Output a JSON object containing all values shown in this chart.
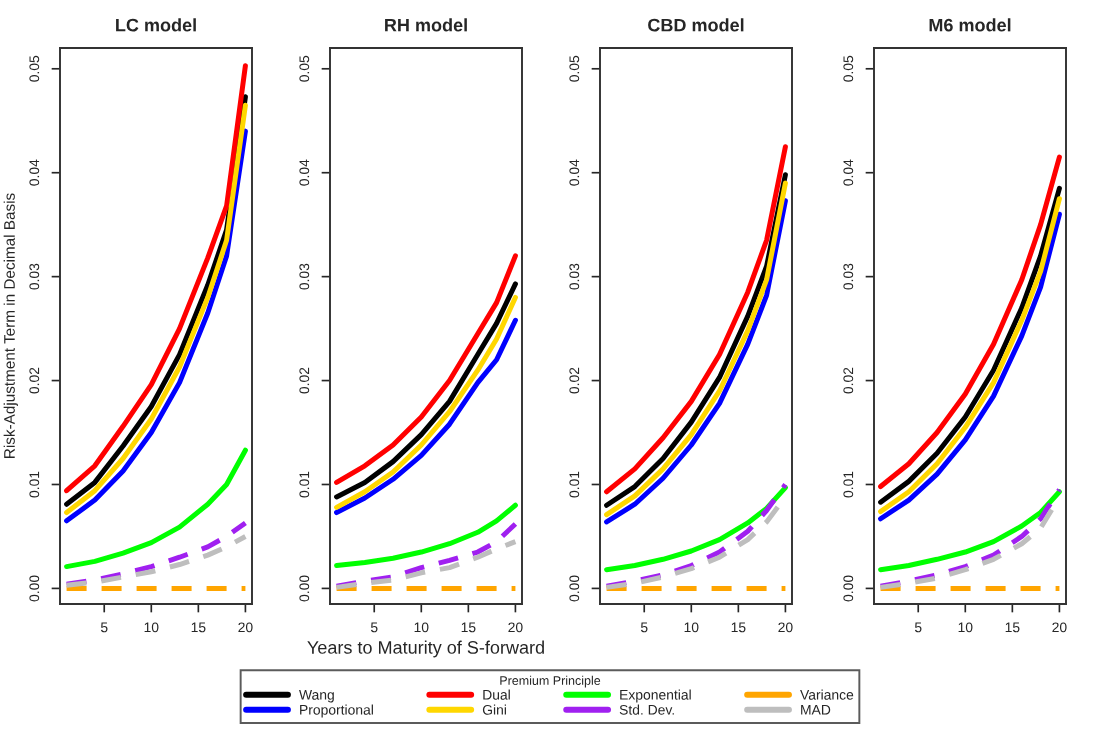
{
  "chart_data": [
    {
      "type": "line",
      "title": "LC model",
      "ylabel": "Risk-Adjustment Term in Decimal Basis",
      "legend": "bottom",
      "legend_title": "Premium Principle",
      "grid": false,
      "x": [
        1,
        4,
        7,
        10,
        13,
        16,
        18,
        20
      ],
      "xlim": [
        0.3,
        20.7
      ],
      "xticks": [
        5,
        10,
        15,
        20
      ],
      "ylim": [
        -0.0015,
        0.052
      ],
      "yticks": [
        {
          "value": 0,
          "label": "0.00"
        },
        {
          "value": 0.01,
          "label": "0.01"
        },
        {
          "value": 0.02,
          "label": "0.02"
        },
        {
          "value": 0.03,
          "label": "0.03"
        },
        {
          "value": 0.04,
          "label": "0.04"
        },
        {
          "value": 0.05,
          "label": "0.05"
        }
      ],
      "series": [
        {
          "name": "Wang",
          "color": "#000000",
          "line_style": "solid",
          "values": [
            0.0081,
            0.0102,
            0.0137,
            0.0175,
            0.0225,
            0.0292,
            0.0345,
            0.0473
          ]
        },
        {
          "name": "Proportional",
          "color": "#0000ff",
          "line_style": "solid",
          "values": [
            0.0065,
            0.0085,
            0.0113,
            0.015,
            0.0198,
            0.0265,
            0.032,
            0.044
          ]
        },
        {
          "name": "Dual",
          "color": "#ff0000",
          "line_style": "solid",
          "values": [
            0.0094,
            0.0118,
            0.0156,
            0.0196,
            0.025,
            0.0318,
            0.0368,
            0.0503
          ]
        },
        {
          "name": "Gini",
          "color": "#ffd700",
          "line_style": "solid",
          "values": [
            0.0073,
            0.0094,
            0.0125,
            0.0163,
            0.0213,
            0.028,
            0.0335,
            0.0465
          ]
        },
        {
          "name": "Exponential",
          "color": "#00ff00",
          "line_style": "solid",
          "values": [
            0.0021,
            0.0026,
            0.0034,
            0.0044,
            0.0059,
            0.0081,
            0.01,
            0.0133
          ]
        },
        {
          "name": "Std. Dev.",
          "color": "#a020f0",
          "line_style": "dashed",
          "values": [
            0.0004,
            0.0008,
            0.0014,
            0.0021,
            0.003,
            0.004,
            0.005,
            0.0063
          ]
        },
        {
          "name": "Variance",
          "color": "#ffa500",
          "line_style": "dashed",
          "values": [
            0,
            0,
            0,
            0,
            0,
            0,
            0,
            0
          ]
        },
        {
          "name": "MAD",
          "color": "#bebebe",
          "line_style": "dashed",
          "values": [
            0.0003,
            0.0006,
            0.0011,
            0.0016,
            0.0023,
            0.0032,
            0.004,
            0.005
          ]
        }
      ]
    },
    {
      "type": "line",
      "title": "RH model",
      "xlabel": "Years to Maturity of S-forward",
      "grid": false,
      "x": [
        1,
        4,
        7,
        10,
        13,
        16,
        18,
        20
      ],
      "xlim": [
        0.3,
        20.7
      ],
      "xticks": [
        5,
        10,
        15,
        20
      ],
      "ylim": [
        -0.0015,
        0.052
      ],
      "yticks": [
        {
          "value": 0,
          "label": "0.00"
        },
        {
          "value": 0.01,
          "label": "0.01"
        },
        {
          "value": 0.02,
          "label": "0.02"
        },
        {
          "value": 0.03,
          "label": "0.03"
        },
        {
          "value": 0.04,
          "label": "0.04"
        },
        {
          "value": 0.05,
          "label": "0.05"
        }
      ],
      "series": [
        {
          "color": "#000000",
          "line_style": "solid",
          "values": [
            0.0088,
            0.0102,
            0.0122,
            0.0148,
            0.018,
            0.0225,
            0.0255,
            0.0293
          ]
        },
        {
          "color": "#0000ff",
          "line_style": "solid",
          "values": [
            0.0073,
            0.0087,
            0.0105,
            0.0128,
            0.0158,
            0.0198,
            0.022,
            0.0258
          ]
        },
        {
          "color": "#ff0000",
          "line_style": "solid",
          "values": [
            0.0102,
            0.0118,
            0.0138,
            0.0165,
            0.02,
            0.0245,
            0.0275,
            0.032
          ]
        },
        {
          "color": "#ffd700",
          "line_style": "solid",
          "values": [
            0.0078,
            0.0093,
            0.0112,
            0.0138,
            0.017,
            0.021,
            0.024,
            0.028
          ]
        },
        {
          "color": "#00ff00",
          "line_style": "solid",
          "values": [
            0.0022,
            0.0025,
            0.0029,
            0.0035,
            0.0043,
            0.0054,
            0.0065,
            0.008
          ]
        },
        {
          "color": "#a020f0",
          "line_style": "dashed",
          "values": [
            0.0002,
            0.0007,
            0.0011,
            0.002,
            0.0027,
            0.0035,
            0.0045,
            0.0062
          ]
        },
        {
          "color": "#ffa500",
          "line_style": "dashed",
          "values": [
            0,
            0,
            0,
            0,
            0,
            0,
            0,
            0
          ]
        },
        {
          "color": "#bebebe",
          "line_style": "dashed",
          "values": [
            0.0001,
            0.0005,
            0.0008,
            0.0015,
            0.002,
            0.003,
            0.0038,
            0.0045
          ]
        }
      ]
    },
    {
      "type": "line",
      "title": "CBD model",
      "grid": false,
      "x": [
        1,
        4,
        7,
        10,
        13,
        16,
        18,
        20
      ],
      "xlim": [
        0.3,
        20.7
      ],
      "xticks": [
        5,
        10,
        15,
        20
      ],
      "ylim": [
        -0.0015,
        0.052
      ],
      "yticks": [
        {
          "value": 0,
          "label": "0.00"
        },
        {
          "value": 0.01,
          "label": "0.01"
        },
        {
          "value": 0.02,
          "label": "0.02"
        },
        {
          "value": 0.03,
          "label": "0.03"
        },
        {
          "value": 0.04,
          "label": "0.04"
        },
        {
          "value": 0.05,
          "label": "0.05"
        }
      ],
      "series": [
        {
          "color": "#000000",
          "line_style": "solid",
          "values": [
            0.008,
            0.0098,
            0.0125,
            0.016,
            0.0203,
            0.0262,
            0.031,
            0.0398
          ]
        },
        {
          "color": "#0000ff",
          "line_style": "solid",
          "values": [
            0.0064,
            0.0081,
            0.0106,
            0.0138,
            0.0178,
            0.0235,
            0.0282,
            0.0373
          ]
        },
        {
          "color": "#ff0000",
          "line_style": "solid",
          "values": [
            0.0093,
            0.0115,
            0.0145,
            0.018,
            0.0225,
            0.0285,
            0.0335,
            0.0425
          ]
        },
        {
          "color": "#ffd700",
          "line_style": "solid",
          "values": [
            0.0071,
            0.0089,
            0.0115,
            0.0148,
            0.019,
            0.0248,
            0.0297,
            0.039
          ]
        },
        {
          "color": "#00ff00",
          "line_style": "solid",
          "values": [
            0.0018,
            0.0022,
            0.0028,
            0.0036,
            0.0047,
            0.0063,
            0.0077,
            0.0097
          ]
        },
        {
          "color": "#a020f0",
          "line_style": "dashed",
          "values": [
            0.0002,
            0.0007,
            0.0013,
            0.0022,
            0.0035,
            0.0055,
            0.0075,
            0.01
          ]
        },
        {
          "color": "#ffa500",
          "line_style": "dashed",
          "values": [
            0,
            0,
            0,
            0,
            0,
            0,
            0,
            0
          ]
        },
        {
          "color": "#bebebe",
          "line_style": "dashed",
          "values": [
            0.0001,
            0.0005,
            0.0011,
            0.0019,
            0.003,
            0.0047,
            0.0064,
            0.0088
          ]
        }
      ]
    },
    {
      "type": "line",
      "title": "M6 model",
      "grid": false,
      "x": [
        1,
        4,
        7,
        10,
        13,
        16,
        18,
        20
      ],
      "xlim": [
        0.3,
        20.7
      ],
      "xticks": [
        5,
        10,
        15,
        20
      ],
      "ylim": [
        -0.0015,
        0.052
      ],
      "yticks": [
        {
          "value": 0,
          "label": "0.00"
        },
        {
          "value": 0.01,
          "label": "0.01"
        },
        {
          "value": 0.02,
          "label": "0.02"
        },
        {
          "value": 0.03,
          "label": "0.03"
        },
        {
          "value": 0.04,
          "label": "0.04"
        },
        {
          "value": 0.05,
          "label": "0.05"
        }
      ],
      "series": [
        {
          "color": "#000000",
          "line_style": "solid",
          "values": [
            0.0083,
            0.0103,
            0.013,
            0.0165,
            0.021,
            0.027,
            0.032,
            0.0385
          ]
        },
        {
          "color": "#0000ff",
          "line_style": "solid",
          "values": [
            0.0067,
            0.0085,
            0.011,
            0.0143,
            0.0185,
            0.0243,
            0.029,
            0.036
          ]
        },
        {
          "color": "#ff0000",
          "line_style": "solid",
          "values": [
            0.0098,
            0.012,
            0.015,
            0.0187,
            0.0235,
            0.0297,
            0.035,
            0.0415
          ]
        },
        {
          "color": "#ffd700",
          "line_style": "solid",
          "values": [
            0.0074,
            0.0093,
            0.012,
            0.0155,
            0.0198,
            0.0258,
            0.0305,
            0.0375
          ]
        },
        {
          "color": "#00ff00",
          "line_style": "solid",
          "values": [
            0.0018,
            0.0022,
            0.0028,
            0.0035,
            0.0045,
            0.006,
            0.0073,
            0.0093
          ]
        },
        {
          "color": "#a020f0",
          "line_style": "dashed",
          "values": [
            0.0002,
            0.0007,
            0.0013,
            0.0021,
            0.0032,
            0.005,
            0.0067,
            0.0095
          ]
        },
        {
          "color": "#ffa500",
          "line_style": "dashed",
          "values": [
            0,
            0,
            0,
            0,
            0,
            0,
            0,
            0
          ]
        },
        {
          "color": "#bebebe",
          "line_style": "dashed",
          "values": [
            0.0001,
            0.0005,
            0.001,
            0.0018,
            0.0028,
            0.0043,
            0.0058,
            0.0088
          ]
        }
      ]
    }
  ]
}
